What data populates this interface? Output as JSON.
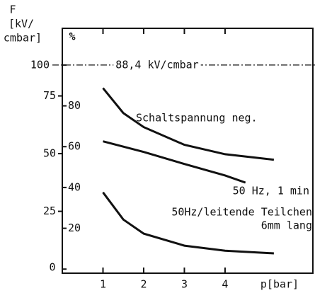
{
  "chart_data": {
    "type": "line",
    "y_label_lines": [
      "F",
      "[kV/",
      "cmbar]"
    ],
    "y2_label": "%",
    "x_label": "p[bar]",
    "xlim": [
      0,
      6.21
    ],
    "xticks": [
      1,
      2,
      3,
      4
    ],
    "ylim": [
      -1.8,
      104.3
    ],
    "yticks": [
      25,
      50,
      75
    ],
    "y2lim": [
      -2,
      118
    ],
    "y2ticks": [
      0,
      20,
      40,
      60,
      80,
      100
    ],
    "reference": {
      "value": 100,
      "label": "88,4 kV/cmbar",
      "axis": "y2"
    },
    "series": [
      {
        "name": "Schaltspannung neg.",
        "color": "#111111",
        "axis": "y2",
        "x": [
          1,
          1.5,
          2,
          3,
          4,
          5.2
        ],
        "values": [
          88.7,
          76.5,
          69.6,
          60.9,
          56.3,
          53.6
        ]
      },
      {
        "name": "50 Hz, 1 min",
        "color": "#111111",
        "axis": "y2",
        "x": [
          1,
          2,
          3,
          4,
          4.5
        ],
        "values": [
          62.6,
          57.4,
          51.5,
          45.9,
          42.4
        ]
      },
      {
        "name": "50Hz/leitende Teilchen",
        "note_line": "6mm lang",
        "color": "#111111",
        "axis": "y2",
        "x": [
          1,
          1.5,
          2,
          3,
          4,
          5.2
        ],
        "values": [
          37.6,
          24.3,
          17.4,
          11.5,
          9.0,
          7.7
        ]
      }
    ]
  }
}
